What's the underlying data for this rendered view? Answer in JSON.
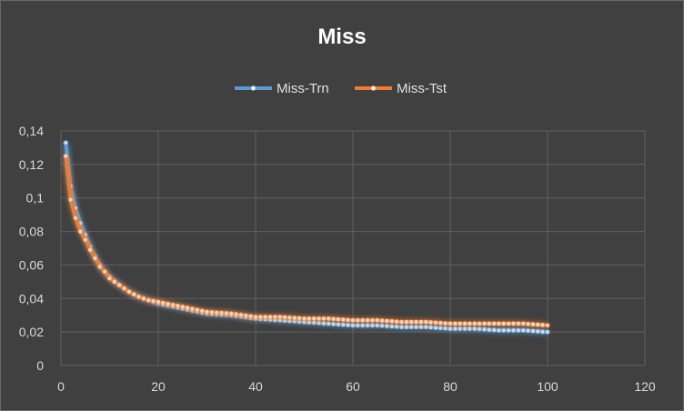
{
  "chart_data": {
    "type": "line",
    "title": "Miss",
    "xlabel": "",
    "ylabel": "",
    "xlim": [
      0,
      120
    ],
    "ylim": [
      0,
      0.14
    ],
    "xticks": [
      "0",
      "20",
      "40",
      "60",
      "80",
      "100",
      "120"
    ],
    "yticks": [
      "0",
      "0,02",
      "0,04",
      "0,06",
      "0,08",
      "0,1",
      "0,12",
      "0,14"
    ],
    "grid": true,
    "legend_position": "top",
    "series": [
      {
        "name": "Miss-Trn",
        "color": "#5b9bd5",
        "x": [
          1,
          2,
          3,
          4,
          5,
          6,
          7,
          8,
          9,
          10,
          12,
          14,
          16,
          18,
          20,
          25,
          30,
          35,
          40,
          45,
          50,
          55,
          60,
          65,
          70,
          75,
          80,
          85,
          90,
          95,
          100
        ],
        "values": [
          0.133,
          0.107,
          0.094,
          0.085,
          0.078,
          0.071,
          0.065,
          0.06,
          0.056,
          0.053,
          0.048,
          0.044,
          0.041,
          0.039,
          0.037,
          0.034,
          0.031,
          0.03,
          0.028,
          0.027,
          0.026,
          0.025,
          0.024,
          0.024,
          0.023,
          0.023,
          0.022,
          0.022,
          0.021,
          0.021,
          0.02
        ]
      },
      {
        "name": "Miss-Tst",
        "color": "#ed7d31",
        "x": [
          1,
          2,
          3,
          4,
          5,
          6,
          7,
          8,
          9,
          10,
          12,
          14,
          16,
          18,
          20,
          25,
          30,
          35,
          40,
          45,
          50,
          55,
          60,
          65,
          70,
          75,
          80,
          85,
          90,
          95,
          100
        ],
        "values": [
          0.125,
          0.099,
          0.088,
          0.08,
          0.075,
          0.069,
          0.064,
          0.059,
          0.056,
          0.052,
          0.048,
          0.044,
          0.041,
          0.039,
          0.038,
          0.035,
          0.032,
          0.031,
          0.029,
          0.029,
          0.028,
          0.028,
          0.027,
          0.027,
          0.026,
          0.026,
          0.025,
          0.025,
          0.025,
          0.025,
          0.024
        ]
      }
    ]
  }
}
